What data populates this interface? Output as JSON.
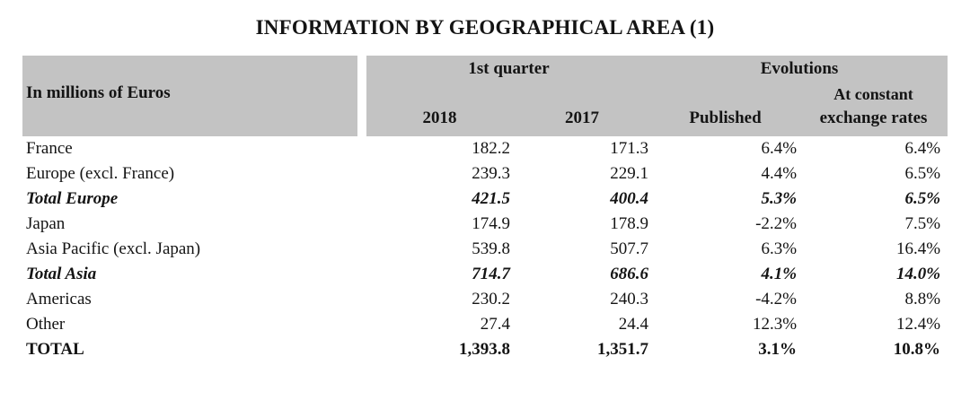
{
  "title": "INFORMATION BY GEOGRAPHICAL AREA (1)",
  "colors": {
    "header_bg": "#c3c3c3",
    "text": "#141414"
  },
  "table": {
    "row_label_header": "In millions of Euros",
    "groups": {
      "first_quarter": "1st quarter",
      "evolutions": "Evolutions"
    },
    "columns": {
      "y2018": "2018",
      "y2017": "2017",
      "published": "Published",
      "at_constant_line1": "At constant",
      "at_constant_line2": "exchange rates"
    },
    "rows": [
      {
        "label": "France",
        "y2018": "182.2",
        "y2017": "171.3",
        "published": "6.4%",
        "constant": "6.4%",
        "emphasis": "normal"
      },
      {
        "label": "Europe (excl. France)",
        "y2018": "239.3",
        "y2017": "229.1",
        "published": "4.4%",
        "constant": "6.5%",
        "emphasis": "normal"
      },
      {
        "label": "Total Europe",
        "y2018": "421.5",
        "y2017": "400.4",
        "published": "5.3%",
        "constant": "6.5%",
        "emphasis": "subtotal"
      },
      {
        "label": "Japan",
        "y2018": "174.9",
        "y2017": "178.9",
        "published": "-2.2%",
        "constant": "7.5%",
        "emphasis": "normal"
      },
      {
        "label": "Asia Pacific (excl. Japan)",
        "y2018": "539.8",
        "y2017": "507.7",
        "published": "6.3%",
        "constant": "16.4%",
        "emphasis": "normal"
      },
      {
        "label": "Total Asia",
        "y2018": "714.7",
        "y2017": "686.6",
        "published": "4.1%",
        "constant": "14.0%",
        "emphasis": "subtotal"
      },
      {
        "label": "Americas",
        "y2018": "230.2",
        "y2017": "240.3",
        "published": "-4.2%",
        "constant": "8.8%",
        "emphasis": "normal"
      },
      {
        "label": "Other",
        "y2018": "27.4",
        "y2017": "24.4",
        "published": "12.3%",
        "constant": "12.4%",
        "emphasis": "normal"
      },
      {
        "label": "TOTAL",
        "y2018": "1,393.8",
        "y2017": "1,351.7",
        "published": "3.1%",
        "constant": "10.8%",
        "emphasis": "total"
      }
    ]
  }
}
